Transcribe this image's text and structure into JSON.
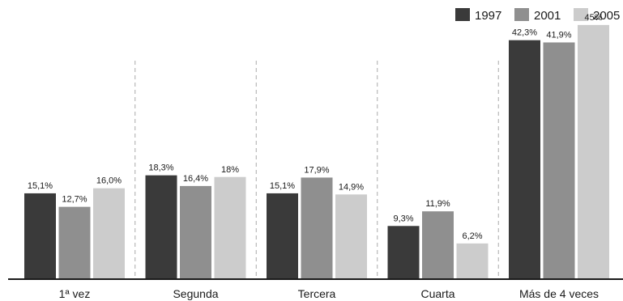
{
  "chart_data": {
    "type": "bar",
    "title": "",
    "xlabel": "",
    "ylabel": "",
    "ylim": [
      0,
      48
    ],
    "grid": false,
    "legend_position": "top-right",
    "categories": [
      "1ª vez",
      "Segunda",
      "Tercera",
      "Cuarta",
      "Más de 4 veces"
    ],
    "series": [
      {
        "name": "1997",
        "color": "#3a3a3a",
        "values": [
          15.1,
          18.3,
          15.1,
          9.3,
          42.3
        ],
        "labels": [
          "15,1%",
          "18,3%",
          "15,1%",
          "9,3%",
          "42,3%"
        ]
      },
      {
        "name": "2001",
        "color": "#8f8f8f",
        "values": [
          12.7,
          16.4,
          17.9,
          11.9,
          41.9
        ],
        "labels": [
          "12,7%",
          "16,4%",
          "17,9%",
          "11,9%",
          "41,9%"
        ]
      },
      {
        "name": "2005",
        "color": "#cccccc",
        "values": [
          16.0,
          18.0,
          14.9,
          6.2,
          45.0
        ],
        "labels": [
          "16,0%",
          "18%",
          "14,9%",
          "6,2%",
          "45%"
        ]
      }
    ]
  }
}
